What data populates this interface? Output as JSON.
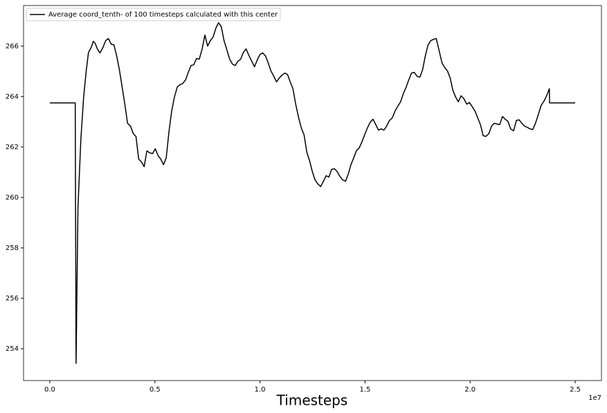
{
  "chart_data": {
    "type": "line",
    "xlabel": "Timesteps",
    "x_offset_label": "1e7",
    "x": [
      0,
      1210000,
      1250000,
      1340000,
      1480000,
      1610000,
      1740000,
      1840000,
      1970000,
      2070000,
      2160000,
      2260000,
      2390000,
      2530000,
      2660000,
      2790000,
      2920000,
      3050000,
      3180000,
      3310000,
      3440000,
      3570000,
      3700000,
      3840000,
      3970000,
      4100000,
      4230000,
      4360000,
      4490000,
      4620000,
      4750000,
      4890000,
      5020000,
      5150000,
      5280000,
      5410000,
      5540000,
      5670000,
      5800000,
      5930000,
      6070000,
      6200000,
      6330000,
      6460000,
      6590000,
      6720000,
      6850000,
      6980000,
      7110000,
      7250000,
      7380000,
      7510000,
      7640000,
      7770000,
      7900000,
      8030000,
      8160000,
      8290000,
      8430000,
      8560000,
      8690000,
      8820000,
      8950000,
      9080000,
      9210000,
      9340000,
      9480000,
      9610000,
      9740000,
      9870000,
      10000000,
      10130000,
      10260000,
      10390000,
      10520000,
      10660000,
      10790000,
      10920000,
      11050000,
      11180000,
      11310000,
      11440000,
      11570000,
      11700000,
      11840000,
      11970000,
      12100000,
      12230000,
      12360000,
      12490000,
      12620000,
      12750000,
      12890000,
      13020000,
      13150000,
      13280000,
      13410000,
      13540000,
      13670000,
      13800000,
      13930000,
      14070000,
      14200000,
      14330000,
      14460000,
      14590000,
      14720000,
      14850000,
      14980000,
      15110000,
      15250000,
      15380000,
      15510000,
      15640000,
      15770000,
      15900000,
      16030000,
      16160000,
      16300000,
      16430000,
      16560000,
      16690000,
      16820000,
      16950000,
      17080000,
      17210000,
      17340000,
      17480000,
      17610000,
      17740000,
      17870000,
      18000000,
      18130000,
      18260000,
      18390000,
      18520000,
      18660000,
      18790000,
      18920000,
      19050000,
      19180000,
      19310000,
      19440000,
      19570000,
      19700000,
      19840000,
      19970000,
      20100000,
      20230000,
      20360000,
      20490000,
      20620000,
      20750000,
      20890000,
      21020000,
      21150000,
      21280000,
      21410000,
      21540000,
      21670000,
      21800000,
      21930000,
      22070000,
      22200000,
      22330000,
      22460000,
      22590000,
      22720000,
      22850000,
      22980000,
      23110000,
      23250000,
      23380000,
      23510000,
      23640000,
      23770000,
      23780000,
      25000000
    ],
    "series": [
      {
        "name": "Average coord_tenth- of 100 timesteps calculated with this center",
        "color": "#000000",
        "values": [
          263.75,
          263.75,
          253.42,
          259.61,
          262.34,
          263.98,
          265.07,
          265.75,
          265.95,
          266.19,
          266.11,
          265.89,
          265.73,
          265.95,
          266.22,
          266.3,
          266.08,
          266.05,
          265.62,
          265.07,
          264.39,
          263.7,
          262.94,
          262.83,
          262.53,
          262.42,
          261.52,
          261.41,
          261.22,
          261.85,
          261.77,
          261.74,
          261.93,
          261.66,
          261.52,
          261.3,
          261.57,
          262.61,
          263.43,
          263.98,
          264.39,
          264.47,
          264.52,
          264.66,
          264.96,
          265.23,
          265.26,
          265.51,
          265.48,
          265.89,
          266.44,
          266.0,
          266.22,
          266.36,
          266.71,
          266.93,
          266.77,
          266.22,
          265.84,
          265.48,
          265.29,
          265.23,
          265.4,
          265.48,
          265.75,
          265.89,
          265.62,
          265.4,
          265.18,
          265.45,
          265.67,
          265.73,
          265.62,
          265.34,
          265.02,
          264.8,
          264.58,
          264.74,
          264.85,
          264.93,
          264.88,
          264.58,
          264.31,
          263.7,
          263.16,
          262.75,
          262.48,
          261.79,
          261.46,
          261.03,
          260.7,
          260.54,
          260.43,
          260.64,
          260.86,
          260.81,
          261.11,
          261.14,
          261.03,
          260.84,
          260.7,
          260.64,
          260.92,
          261.3,
          261.57,
          261.85,
          261.96,
          262.2,
          262.48,
          262.75,
          262.99,
          263.1,
          262.89,
          262.67,
          262.72,
          262.67,
          262.83,
          263.05,
          263.16,
          263.43,
          263.62,
          263.79,
          264.11,
          264.36,
          264.66,
          264.93,
          264.96,
          264.8,
          264.77,
          265.07,
          265.62,
          266.05,
          266.22,
          266.27,
          266.3,
          265.84,
          265.34,
          265.15,
          265.02,
          264.74,
          264.25,
          263.98,
          263.79,
          264.03,
          263.92,
          263.7,
          263.76,
          263.6,
          263.43,
          263.16,
          262.89,
          262.45,
          262.42,
          262.53,
          262.83,
          262.94,
          262.91,
          262.89,
          263.21,
          263.1,
          263.02,
          262.72,
          262.64,
          263.05,
          263.08,
          262.94,
          262.83,
          262.78,
          262.72,
          262.69,
          262.94,
          263.3,
          263.65,
          263.81,
          264.03,
          264.31,
          263.75,
          263.75
        ]
      }
    ],
    "xlim": [
      -1250000,
      26250000
    ],
    "xticks": [
      {
        "value": 0,
        "label": "0.0"
      },
      {
        "value": 5000000,
        "label": "0.5"
      },
      {
        "value": 10000000,
        "label": "1.0"
      },
      {
        "value": 15000000,
        "label": "1.5"
      },
      {
        "value": 20000000,
        "label": "2.0"
      },
      {
        "value": 25000000,
        "label": "2.5"
      }
    ],
    "ylim": [
      252.74,
      267.61
    ],
    "yticks": [
      254,
      256,
      258,
      260,
      262,
      264,
      266
    ],
    "grid": false,
    "legend": "upper left"
  }
}
